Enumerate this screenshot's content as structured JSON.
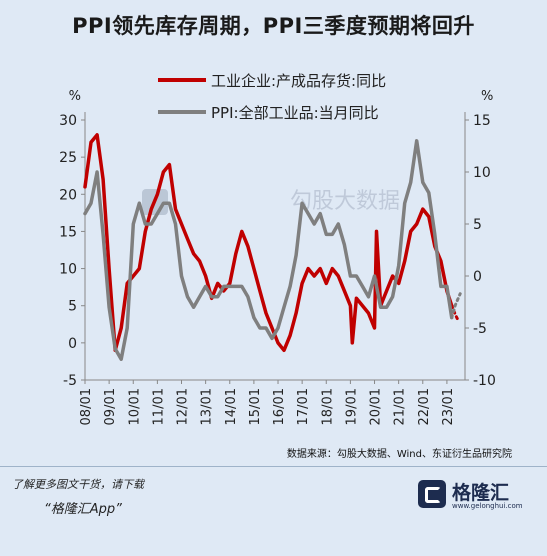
{
  "title": "PPI领先库存周期，PPI三季度预期将回升",
  "footer": {
    "download_tip": "了解更多图文干货，请下载",
    "app_name": "“格隆汇App”",
    "brand_name": "格隆汇",
    "brand_url": "www.gelonghui.com"
  },
  "colors": {
    "inventory": "#c00000",
    "ppi": "#7f7f7f",
    "background": "#dfe9f5"
  },
  "chart_data": {
    "type": "line",
    "title": "",
    "x_ticks": [
      "08/01",
      "09/01",
      "10/01",
      "11/01",
      "12/01",
      "13/01",
      "14/01",
      "15/01",
      "16/01",
      "17/01",
      "18/01",
      "19/01",
      "20/01",
      "21/01",
      "22/01",
      "23/01"
    ],
    "y_left": {
      "label": "%",
      "ticks": [
        -5,
        0,
        5,
        10,
        15,
        20,
        25,
        30
      ],
      "range": [
        -5,
        30
      ]
    },
    "y_right": {
      "label": "%",
      "ticks": [
        -10,
        -5,
        0,
        5,
        10,
        15
      ],
      "range": [
        -10,
        15
      ]
    },
    "legend_position": "top",
    "source": "数据来源：勾股大数据、Wind、东证衍生品研究院",
    "watermark": "勾股大数据",
    "series": [
      {
        "name": "工业企业:产成品存货:同比",
        "axis": "left",
        "x": [
          2008.0,
          2008.25,
          2008.5,
          2008.75,
          2009.0,
          2009.25,
          2009.5,
          2009.75,
          2010.0,
          2010.25,
          2010.5,
          2010.75,
          2011.0,
          2011.25,
          2011.5,
          2011.75,
          2012.0,
          2012.25,
          2012.5,
          2012.75,
          2013.0,
          2013.25,
          2013.5,
          2013.75,
          2014.0,
          2014.25,
          2014.5,
          2014.75,
          2015.0,
          2015.25,
          2015.5,
          2015.75,
          2016.0,
          2016.25,
          2016.5,
          2016.75,
          2017.0,
          2017.25,
          2017.5,
          2017.75,
          2018.0,
          2018.25,
          2018.5,
          2018.75,
          2019.0,
          2019.08,
          2019.25,
          2019.5,
          2019.75,
          2020.0,
          2020.08,
          2020.25,
          2020.5,
          2020.75,
          2021.0,
          2021.25,
          2021.5,
          2021.75,
          2022.0,
          2022.25,
          2022.5,
          2022.75,
          2023.0,
          2023.2
        ],
        "y": [
          21,
          27,
          28,
          22,
          10,
          -1,
          2,
          8,
          9,
          10,
          15,
          18,
          20,
          23,
          24,
          18,
          16,
          14,
          12,
          11,
          9,
          6,
          8,
          7,
          8,
          12,
          15,
          13,
          10,
          7,
          4,
          2,
          0,
          -1,
          1,
          4,
          8,
          10,
          9,
          10,
          8,
          10,
          9,
          7,
          5,
          0,
          6,
          5,
          4,
          2,
          15,
          5,
          7,
          9,
          8,
          11,
          15,
          16,
          18,
          17,
          13,
          11,
          7,
          5
        ],
        "dashed_tail": [
          [
            2023.2,
            5
          ],
          [
            2023.35,
            3.8
          ],
          [
            2023.5,
            2.8
          ]
        ]
      },
      {
        "name": "PPI:全部工业品:当月同比",
        "axis": "right",
        "x": [
          2008.0,
          2008.25,
          2008.5,
          2008.75,
          2009.0,
          2009.25,
          2009.5,
          2009.75,
          2010.0,
          2010.25,
          2010.5,
          2010.75,
          2011.0,
          2011.25,
          2011.5,
          2011.75,
          2012.0,
          2012.25,
          2012.5,
          2012.75,
          2013.0,
          2013.25,
          2013.5,
          2013.75,
          2014.0,
          2014.25,
          2014.5,
          2014.75,
          2015.0,
          2015.25,
          2015.5,
          2015.75,
          2016.0,
          2016.25,
          2016.5,
          2016.75,
          2017.0,
          2017.25,
          2017.5,
          2017.75,
          2018.0,
          2018.25,
          2018.5,
          2018.75,
          2019.0,
          2019.25,
          2019.5,
          2019.75,
          2020.0,
          2020.25,
          2020.5,
          2020.75,
          2021.0,
          2021.25,
          2021.5,
          2021.75,
          2022.0,
          2022.25,
          2022.5,
          2022.75,
          2023.0,
          2023.2
        ],
        "y": [
          6,
          7,
          10,
          4,
          -3,
          -7,
          -8,
          -5,
          5,
          7,
          5,
          5,
          6,
          7,
          7,
          5,
          0,
          -2,
          -3,
          -2,
          -1,
          -2,
          -2,
          -1,
          -1,
          -1,
          -1,
          -2,
          -4,
          -5,
          -5,
          -6,
          -5,
          -3,
          -1,
          2,
          7,
          6,
          5,
          6,
          4,
          4,
          5,
          3,
          0,
          0,
          -1,
          -2,
          0,
          -3,
          -3,
          -2,
          1,
          7,
          9,
          13,
          9,
          8,
          4,
          -1,
          -1,
          -4
        ],
        "dashed_tail": [
          [
            2023.2,
            -4
          ],
          [
            2023.35,
            -2.8
          ],
          [
            2023.55,
            -1.7
          ]
        ]
      }
    ]
  }
}
